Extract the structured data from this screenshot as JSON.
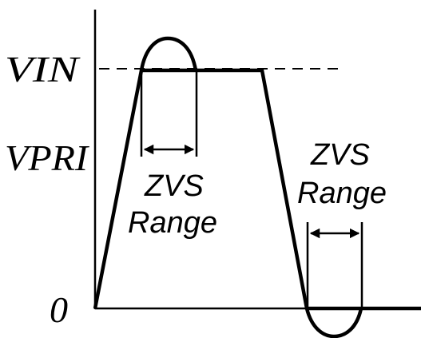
{
  "labels": {
    "vin": "VIN",
    "vpri": "VPRI",
    "zero": "0",
    "zvs_left_line1": "ZVS",
    "zvs_left_line2": "Range",
    "zvs_right_line1": "ZVS",
    "zvs_right_line2": "Range"
  }
}
